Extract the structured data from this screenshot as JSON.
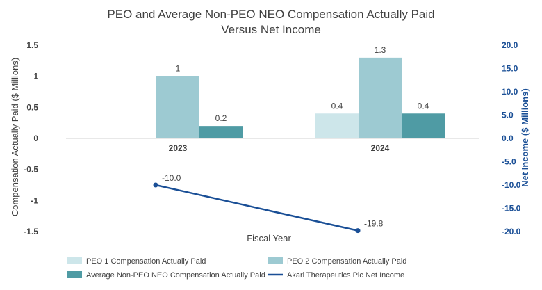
{
  "chart_data": {
    "type": "bar",
    "title": "PEO and Average Non-PEO NEO Compensation Actually Paid",
    "subtitle": "Versus Net Income",
    "xlabel": "Fiscal Year",
    "ylabel": "Compensation Actually Paid ($ Millions)",
    "y2label": "Net Income ($ Millions)",
    "ylim": [
      -1.5,
      1.5
    ],
    "y2lim": [
      -20,
      20
    ],
    "yticks": [
      "1.5",
      "1",
      "0.5",
      "0",
      "-0.5",
      "-1",
      "-1.5"
    ],
    "y2ticks": [
      "20.0",
      "15.0",
      "10.0",
      "5.0",
      "0.0",
      "-5.0",
      "-10.0",
      "-15.0",
      "-20.0"
    ],
    "categories": [
      "2023",
      "2024"
    ],
    "series": [
      {
        "name": "PEO 1 Compensation Actually Paid",
        "kind": "bar",
        "axis": "left",
        "color": "#cde6ea",
        "values": [
          null,
          0.4
        ],
        "labels": [
          "",
          "0.4"
        ]
      },
      {
        "name": "PEO 2 Compensation Actually Paid",
        "kind": "bar",
        "axis": "left",
        "color": "#9dcad2",
        "values": [
          1.0,
          1.3
        ],
        "labels": [
          "1",
          "1.3"
        ]
      },
      {
        "name": "Average Non-PEO NEO Compensation Actually Paid",
        "kind": "bar",
        "axis": "left",
        "color": "#4f9ba4",
        "values": [
          0.2,
          0.4
        ],
        "labels": [
          "0.2",
          "0.4"
        ]
      },
      {
        "name": "Akari Therapeutics Plc Net Income",
        "kind": "line",
        "axis": "right",
        "color": "#1a4f96",
        "values": [
          -10.0,
          -19.8
        ],
        "labels": [
          "-10.0",
          "-19.8"
        ]
      }
    ],
    "legend_position": "bottom",
    "grid": false
  }
}
